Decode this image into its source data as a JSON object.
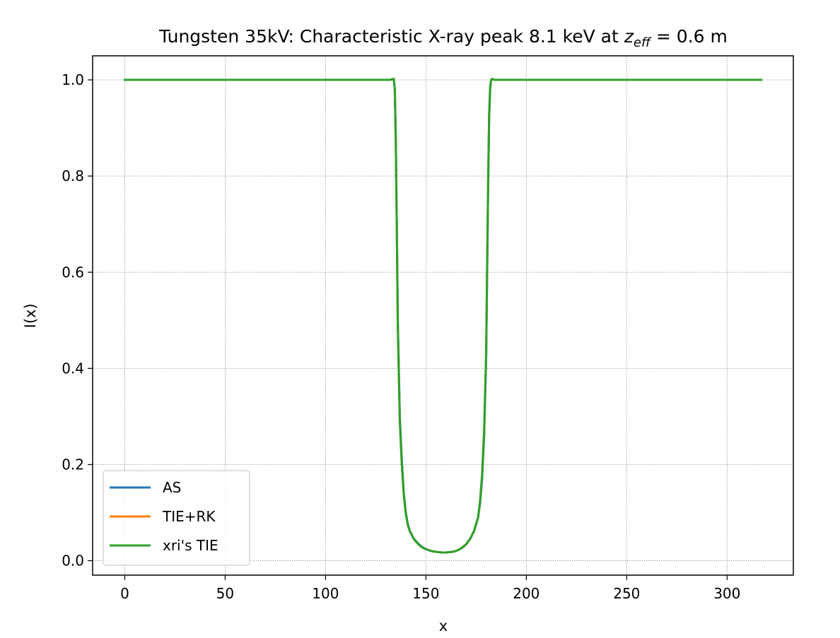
{
  "chart_data": {
    "type": "line",
    "title": {
      "main": "Tungsten 35kV: Characteristic X-ray peak 8.1 keV at ",
      "var_base": "z",
      "var_sub": "eff",
      "rest": " = 0.6 m"
    },
    "xlabel": "x",
    "ylabel": "I(x)",
    "xlim": [
      -16,
      333
    ],
    "ylim": [
      -0.03,
      1.05
    ],
    "xticks": [
      0,
      50,
      100,
      150,
      200,
      250,
      300
    ],
    "yticks": [
      0.0,
      0.2,
      0.4,
      0.6,
      0.8,
      1.0
    ],
    "xtick_labels": [
      "0",
      "50",
      "100",
      "150",
      "200",
      "250",
      "300"
    ],
    "ytick_labels": [
      "0.0",
      "0.2",
      "0.4",
      "0.6",
      "0.8",
      "1.0"
    ],
    "grid": true,
    "legend_position": "lower-left",
    "x": [
      0,
      50,
      100,
      130,
      132,
      133,
      134,
      134.5,
      135,
      135.5,
      136,
      137,
      138,
      139,
      140,
      141,
      142,
      144,
      146,
      148,
      150,
      152,
      154,
      156,
      158,
      160,
      162,
      164,
      166,
      168,
      170,
      172,
      174,
      176,
      177,
      178,
      179,
      180,
      180.5,
      181,
      181.5,
      182,
      182.5,
      183,
      184,
      186,
      200,
      250,
      300,
      317
    ],
    "series": [
      {
        "name": "AS",
        "color": "#1f77b4",
        "values": [
          1.0,
          1.0,
          1.0,
          1.0,
          1.0,
          1.001,
          1.002,
          0.98,
          0.88,
          0.7,
          0.5,
          0.3,
          0.21,
          0.14,
          0.1,
          0.076,
          0.062,
          0.046,
          0.036,
          0.029,
          0.024,
          0.021,
          0.019,
          0.018,
          0.017,
          0.017,
          0.018,
          0.019,
          0.022,
          0.027,
          0.034,
          0.045,
          0.062,
          0.09,
          0.12,
          0.17,
          0.26,
          0.42,
          0.6,
          0.78,
          0.92,
          0.98,
          1.0,
          1.002,
          1.0,
          1.0,
          1.0,
          1.0,
          1.0,
          1.0
        ]
      },
      {
        "name": "TIE+RK",
        "color": "#ff7f0e",
        "values": [
          1.0,
          1.0,
          1.0,
          1.0,
          1.0,
          1.001,
          1.002,
          0.98,
          0.87,
          0.69,
          0.49,
          0.29,
          0.2,
          0.135,
          0.097,
          0.074,
          0.061,
          0.045,
          0.035,
          0.028,
          0.024,
          0.021,
          0.019,
          0.018,
          0.017,
          0.017,
          0.018,
          0.019,
          0.022,
          0.027,
          0.034,
          0.045,
          0.062,
          0.09,
          0.125,
          0.18,
          0.27,
          0.43,
          0.61,
          0.79,
          0.93,
          0.985,
          1.0,
          1.002,
          1.0,
          1.0,
          1.0,
          1.0,
          1.0,
          1.0
        ]
      },
      {
        "name": "xri's TIE",
        "color": "#2ca02c",
        "values": [
          1.0,
          1.0,
          1.0,
          1.0,
          1.0,
          1.001,
          1.002,
          0.98,
          0.87,
          0.69,
          0.49,
          0.29,
          0.2,
          0.135,
          0.097,
          0.074,
          0.061,
          0.045,
          0.035,
          0.028,
          0.024,
          0.021,
          0.019,
          0.018,
          0.017,
          0.017,
          0.018,
          0.019,
          0.022,
          0.027,
          0.034,
          0.045,
          0.062,
          0.09,
          0.125,
          0.18,
          0.27,
          0.43,
          0.61,
          0.79,
          0.93,
          0.985,
          1.0,
          1.002,
          1.0,
          1.0,
          1.0,
          1.0,
          1.0,
          1.0
        ]
      }
    ]
  }
}
